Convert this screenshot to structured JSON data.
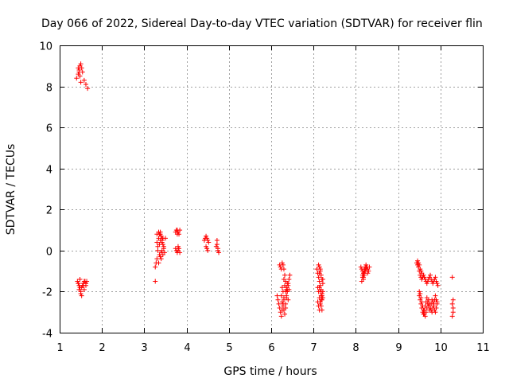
{
  "chart_data": {
    "type": "scatter",
    "title": "Day 066 of 2022, Sidereal Day-to-day VTEC variation (SDTVAR) for receiver flin",
    "xlabel": "GPS time / hours",
    "ylabel": "SDTVAR / TECUs",
    "xlim": [
      1,
      11
    ],
    "ylim": [
      -4,
      10
    ],
    "xticks": [
      "1",
      "2",
      "3",
      "4",
      "5",
      "6",
      "7",
      "8",
      "9",
      "10",
      "11"
    ],
    "yticks": [
      "-4",
      "-2",
      "0",
      "2",
      "4",
      "6",
      "8",
      "10"
    ],
    "grid": true,
    "marker": "plus",
    "color": "#ff0000",
    "series": [
      {
        "name": "SDTVAR",
        "x": [
          1.42,
          1.44,
          1.46,
          1.48,
          1.5,
          1.52,
          1.46,
          1.5,
          1.54,
          1.56,
          1.58,
          1.48,
          1.44,
          1.52,
          1.56,
          1.6,
          1.62,
          1.58,
          1.62,
          1.64,
          1.62,
          1.4,
          1.44,
          1.46,
          1.48,
          1.5,
          1.52,
          1.54,
          1.58,
          1.62,
          1.66,
          1.5,
          1.48,
          1.46,
          1.44,
          3.26,
          3.28,
          3.3,
          3.32,
          3.3,
          3.34,
          3.36,
          3.38,
          3.4,
          3.42,
          3.44,
          3.46,
          3.48,
          3.32,
          3.36,
          3.4,
          3.44,
          3.34,
          3.38,
          3.42,
          3.46,
          3.3,
          3.34,
          3.38,
          3.42,
          3.36,
          3.4,
          3.44,
          3.38,
          3.42,
          3.26,
          3.5,
          3.74,
          3.76,
          3.78,
          3.8,
          3.82,
          3.84,
          3.74,
          3.76,
          3.78,
          3.8,
          3.82,
          3.84,
          3.78,
          3.8,
          4.42,
          4.44,
          4.46,
          4.48,
          4.5,
          4.52,
          4.46,
          4.48,
          4.5,
          4.7,
          4.72,
          4.74,
          4.76,
          4.72,
          4.74,
          6.14,
          6.16,
          6.18,
          6.2,
          6.22,
          6.24,
          6.26,
          6.28,
          6.3,
          6.2,
          6.22,
          6.24,
          6.26,
          6.28,
          6.3,
          6.32,
          6.34,
          6.36,
          6.38,
          6.4,
          6.42,
          6.44,
          6.24,
          6.26,
          6.28,
          6.3,
          6.32,
          6.34,
          6.36,
          6.38,
          6.4,
          6.42,
          6.26,
          6.28,
          6.3,
          6.34,
          6.36,
          6.38,
          6.3,
          6.32,
          6.34,
          6.36,
          6.38,
          6.4,
          7.08,
          7.1,
          7.12,
          7.14,
          7.16,
          7.18,
          7.2,
          7.22,
          7.1,
          7.12,
          7.14,
          7.16,
          7.18,
          7.2,
          7.22,
          7.12,
          7.14,
          7.16,
          7.18,
          7.2,
          7.22,
          7.14,
          7.16,
          7.18,
          7.2,
          7.1,
          7.12,
          7.14,
          7.16,
          7.18,
          7.2,
          7.22,
          7.14,
          7.16,
          8.12,
          8.14,
          8.16,
          8.18,
          8.2,
          8.22,
          8.24,
          8.26,
          8.28,
          8.3,
          8.32,
          8.16,
          8.18,
          8.2,
          8.22,
          8.24,
          8.26,
          8.28,
          8.18,
          8.2,
          8.22,
          8.24,
          8.26,
          8.14,
          8.16,
          8.18,
          9.44,
          9.46,
          9.48,
          9.5,
          9.52,
          9.54,
          9.56,
          9.58,
          9.6,
          9.62,
          9.64,
          9.66,
          9.68,
          9.7,
          9.72,
          9.74,
          9.76,
          9.78,
          9.8,
          9.82,
          9.84,
          9.86,
          9.88,
          9.9,
          9.92,
          9.94,
          9.5,
          9.52,
          9.54,
          9.56,
          9.58,
          9.6,
          9.62,
          9.64,
          9.66,
          9.68,
          9.7,
          9.72,
          9.74,
          9.76,
          9.78,
          9.8,
          9.82,
          9.84,
          9.86,
          9.88,
          9.9,
          9.92,
          9.5,
          9.52,
          9.54,
          9.56,
          9.58,
          9.6,
          9.62,
          9.64,
          9.66,
          9.68,
          9.7,
          9.72,
          9.74,
          9.76,
          9.78,
          9.8,
          9.82,
          9.84,
          9.86,
          9.88,
          9.9,
          9.92,
          9.46,
          9.48,
          9.5,
          9.52,
          9.54,
          9.56,
          10.28,
          10.3,
          10.28,
          10.3,
          10.3,
          10.28
        ],
        "y": [
          -1.5,
          -1.6,
          -1.7,
          -1.8,
          -2.0,
          -2.2,
          -1.9,
          -2.1,
          -1.7,
          -1.6,
          -1.5,
          -1.4,
          -1.6,
          -1.8,
          -1.7,
          -1.5,
          -1.6,
          -1.9,
          -1.6,
          -1.5,
          -1.7,
          8.4,
          8.6,
          8.8,
          9.0,
          9.1,
          8.9,
          8.7,
          8.3,
          8.1,
          7.9,
          8.2,
          8.5,
          8.7,
          8.9,
          -0.8,
          -0.6,
          -0.4,
          0.0,
          0.4,
          0.6,
          0.8,
          0.9,
          0.7,
          0.5,
          0.3,
          0.1,
          -0.1,
          0.2,
          -0.2,
          -0.4,
          -0.2,
          -0.6,
          -0.3,
          0.0,
          0.2,
          0.8,
          0.9,
          0.8,
          0.6,
          0.3,
          -0.1,
          0.6,
          0.5,
          0.4,
          -1.5,
          0.6,
          0.9,
          1.0,
          1.0,
          0.9,
          0.8,
          1.0,
          0.1,
          0.0,
          -0.1,
          0.0,
          0.1,
          -0.1,
          0.8,
          0.2,
          0.5,
          0.6,
          0.7,
          0.6,
          0.5,
          0.4,
          0.2,
          0.1,
          0.0,
          0.2,
          0.5,
          0.0,
          -0.1,
          0.3,
          0.1,
          -2.2,
          -2.4,
          -2.6,
          -2.8,
          -3.0,
          -3.2,
          -2.9,
          -2.6,
          -2.4,
          -0.7,
          -0.8,
          -0.9,
          -0.6,
          -0.7,
          -0.9,
          -1.2,
          -1.5,
          -1.8,
          -2.0,
          -1.6,
          -1.4,
          -1.2,
          -2.2,
          -2.5,
          -2.7,
          -2.9,
          -3.1,
          -2.8,
          -2.3,
          -2.0,
          -1.7,
          -1.9,
          -1.8,
          -2.0,
          -2.3,
          -2.6,
          -1.9,
          -1.6,
          -1.4,
          -1.7,
          -2.0,
          -2.2,
          -1.9,
          -2.4,
          -0.9,
          -1.1,
          -1.3,
          -1.5,
          -1.7,
          -1.9,
          -2.1,
          -2.3,
          -2.5,
          -2.7,
          -2.9,
          -2.6,
          -2.4,
          -2.2,
          -2.0,
          -0.7,
          -0.8,
          -1.0,
          -1.2,
          -1.4,
          -1.6,
          -1.8,
          -2.0,
          -2.2,
          -2.4,
          -1.8,
          -2.0,
          -2.3,
          -2.5,
          -2.7,
          -2.9,
          -1.4,
          -1.1,
          -0.9,
          -0.8,
          -0.9,
          -1.0,
          -1.1,
          -0.9,
          -0.8,
          -0.7,
          -0.8,
          -0.9,
          -1.0,
          -0.8,
          -1.2,
          -1.3,
          -1.1,
          -1.0,
          -0.9,
          -0.8,
          -1.1,
          -1.4,
          -1.2,
          -1.0,
          -0.9,
          -0.8,
          -1.5,
          -1.3,
          -1.1,
          -0.6,
          -0.7,
          -0.8,
          -1.0,
          -1.2,
          -1.3,
          -1.4,
          -1.3,
          -1.2,
          -1.3,
          -1.4,
          -1.5,
          -1.6,
          -1.5,
          -1.4,
          -1.3,
          -1.2,
          -1.4,
          -1.5,
          -1.6,
          -1.5,
          -1.4,
          -1.3,
          -1.5,
          -1.6,
          -1.7,
          -2.2,
          -2.4,
          -2.6,
          -2.8,
          -3.0,
          -3.1,
          -2.9,
          -2.7,
          -2.5,
          -2.3,
          -2.5,
          -2.7,
          -2.9,
          -2.8,
          -2.6,
          -2.4,
          -2.5,
          -2.7,
          -2.9,
          -3.0,
          -2.8,
          -2.6,
          -2.0,
          -2.1,
          -2.3,
          -2.5,
          -2.7,
          -2.9,
          -3.1,
          -3.2,
          -3.0,
          -2.8,
          -2.6,
          -2.4,
          -2.6,
          -2.8,
          -2.9,
          -3.0,
          -2.8,
          -2.6,
          -2.4,
          -2.2,
          -2.4,
          -2.5,
          -0.5,
          -0.6,
          -0.7,
          -0.9,
          -1.0,
          -1.1,
          -1.3,
          -2.4,
          -2.6,
          -2.8,
          -3.0,
          -3.2
        ]
      }
    ]
  }
}
